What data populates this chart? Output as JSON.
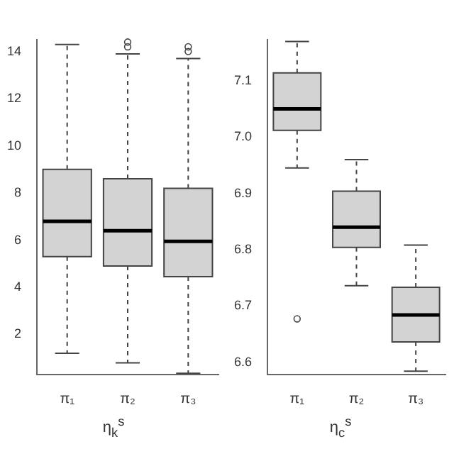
{
  "chart_data": [
    {
      "type": "box",
      "xlabel": "η$_{k}$$^{s}$",
      "categories": [
        "π₁",
        "π₂",
        "π₃"
      ],
      "ylim": [
        0.3,
        14.5
      ],
      "yticks": [
        2,
        4,
        6,
        8,
        10,
        12,
        14
      ],
      "grid": false,
      "series": [
        {
          "color": "#d3d3d3",
          "boxes": [
            {
              "low": 1.2,
              "q1": 5.3,
              "median": 6.8,
              "q3": 9.0,
              "high": 14.3
            },
            {
              "low": 0.8,
              "q1": 4.9,
              "median": 6.4,
              "q3": 8.6,
              "high": 13.9,
              "outliers": [
                14.4,
                14.2
              ]
            },
            {
              "low": 0.35,
              "q1": 4.45,
              "median": 5.95,
              "q3": 8.2,
              "high": 13.7,
              "outliers": [
                14.2,
                14.0
              ]
            }
          ]
        }
      ]
    },
    {
      "type": "box",
      "xlabel": "η$_{c}$$^{s}$",
      "categories": [
        "π₁",
        "π₂",
        "π₃"
      ],
      "ylim": [
        6.578,
        7.173
      ],
      "yticks": [
        6.6,
        6.7,
        6.8,
        6.9,
        {
          "value": 7,
          "label": "7.0"
        },
        7.1
      ],
      "grid": false,
      "series": [
        {
          "color": "#d3d3d3",
          "boxes": [
            {
              "low": 6.945,
              "q1": 7.012,
              "median": 7.05,
              "q3": 7.114,
              "high": 7.17,
              "outliers": [
                6.677
              ]
            },
            {
              "low": 6.736,
              "q1": 6.804,
              "median": 6.84,
              "q3": 6.904,
              "high": 6.96
            },
            {
              "low": 6.584,
              "q1": 6.636,
              "median": 6.684,
              "q3": 6.733,
              "high": 6.808
            }
          ]
        }
      ]
    }
  ]
}
